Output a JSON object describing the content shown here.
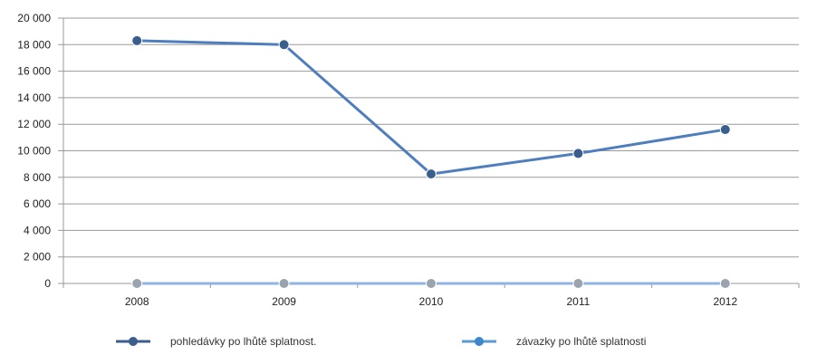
{
  "chart_data": {
    "type": "line",
    "categories": [
      "2008",
      "2009",
      "2010",
      "2011",
      "2012"
    ],
    "series": [
      {
        "name": "pohledávky po lhůtě splatnost.",
        "values": [
          18300,
          18000,
          8250,
          9800,
          11600
        ],
        "color": "#4F7EBE",
        "marker_color": "#3A5F8F"
      },
      {
        "name": "závazky po lhůtě splatnosti",
        "values": [
          0,
          0,
          0,
          0,
          0
        ],
        "color": "#8FB4E3",
        "marker_color": "#9AA3AE"
      }
    ],
    "yticks": [
      "0",
      "2 000",
      "4 000",
      "6 000",
      "8 000",
      "10 000",
      "12 000",
      "14 000",
      "16 000",
      "18 000",
      "20 000"
    ],
    "ylim": [
      0,
      20000
    ],
    "grid": true,
    "legend_position": "bottom"
  }
}
